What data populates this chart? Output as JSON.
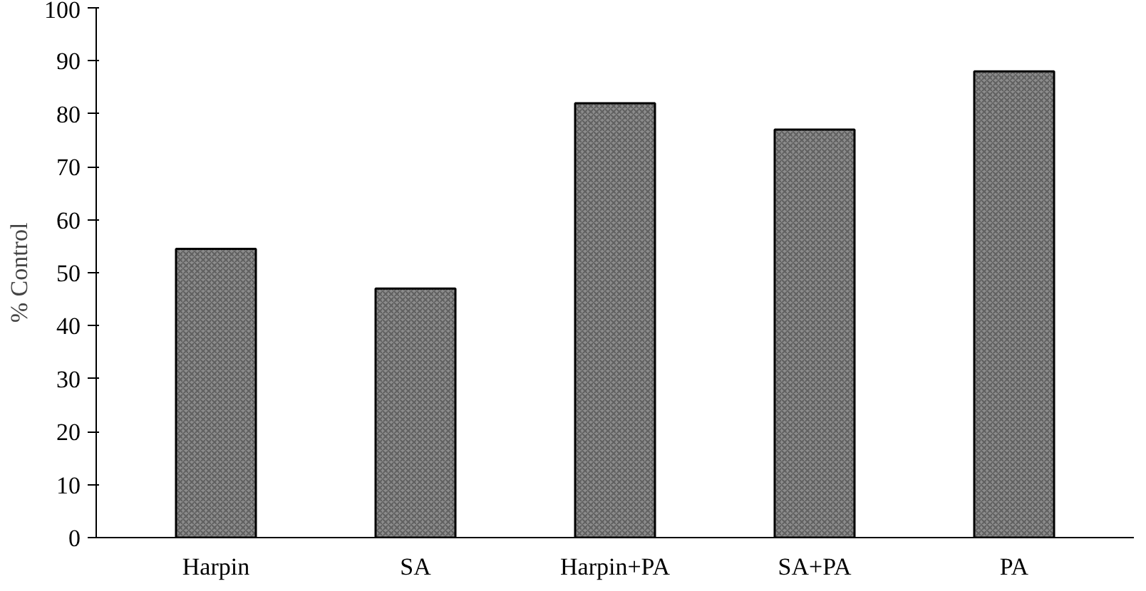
{
  "chart_data": {
    "type": "bar",
    "ylabel": "% Control",
    "categories": [
      "Harpin",
      "SA",
      "Harpin+PA",
      "SA+PA",
      "PA"
    ],
    "values": [
      54.5,
      47,
      82,
      77,
      88
    ],
    "color": "#8c8c8c",
    "ylim": [
      0,
      100
    ],
    "yticks": [
      0,
      10,
      20,
      30,
      40,
      50,
      60,
      70,
      80,
      90,
      100
    ],
    "grid": false
  }
}
